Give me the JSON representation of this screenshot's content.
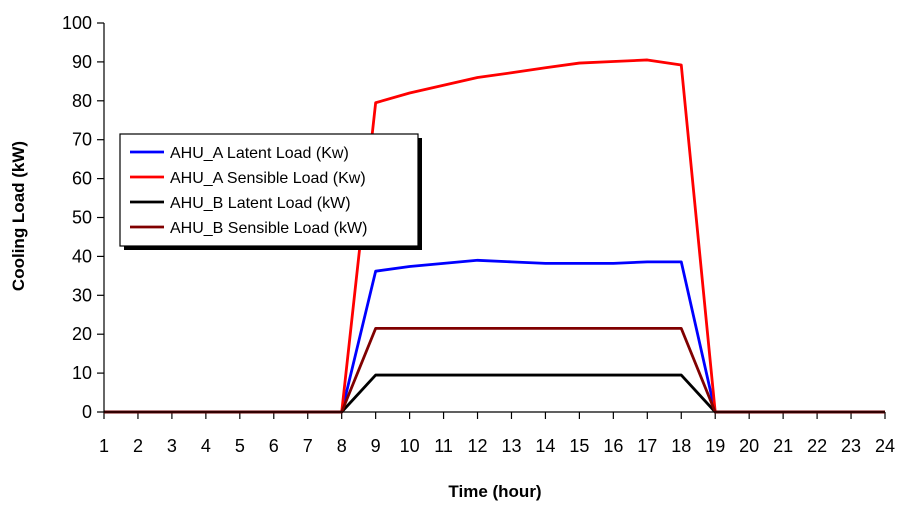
{
  "chart_data": {
    "type": "line",
    "title": "",
    "xlabel": "Time (hour)",
    "ylabel": "Cooling Load (kW)",
    "x": [
      1,
      2,
      3,
      4,
      5,
      6,
      7,
      8,
      9,
      10,
      11,
      12,
      13,
      14,
      15,
      16,
      17,
      18,
      19,
      20,
      21,
      22,
      23,
      24
    ],
    "xlim": [
      1,
      24
    ],
    "ylim": [
      0,
      100
    ],
    "yticks": [
      0,
      10,
      20,
      30,
      40,
      50,
      60,
      70,
      80,
      90,
      100
    ],
    "grid": false,
    "legend_position": "left",
    "series": [
      {
        "name": "AHU_A Latent Load (Kw)",
        "color": "#0000ff",
        "values": [
          0,
          0,
          0,
          0,
          0,
          0,
          0,
          0,
          36.2,
          37.4,
          38.2,
          39.0,
          38.6,
          38.2,
          38.2,
          38.2,
          38.6,
          38.6,
          0,
          0,
          0,
          0,
          0,
          0
        ]
      },
      {
        "name": "AHU_A Sensible Load (Kw)",
        "color": "#ff0000",
        "values": [
          0,
          0,
          0,
          0,
          0,
          0,
          0,
          0,
          79.5,
          82.0,
          84.0,
          86.0,
          87.2,
          88.5,
          89.7,
          90.1,
          90.5,
          89.2,
          0,
          0,
          0,
          0,
          0,
          0
        ]
      },
      {
        "name": "AHU_B Latent Load (kW)",
        "color": "#000000",
        "values": [
          0,
          0,
          0,
          0,
          0,
          0,
          0,
          0,
          9.5,
          9.5,
          9.5,
          9.5,
          9.5,
          9.5,
          9.5,
          9.5,
          9.5,
          9.5,
          0,
          0,
          0,
          0,
          0,
          0
        ]
      },
      {
        "name": "AHU_B Sensible Load (kW)",
        "color": "#800000",
        "values": [
          0,
          0,
          0,
          0,
          0,
          0,
          0,
          0,
          21.5,
          21.5,
          21.5,
          21.5,
          21.5,
          21.5,
          21.5,
          21.5,
          21.5,
          21.5,
          0,
          0,
          0,
          0,
          0,
          0
        ]
      }
    ]
  }
}
